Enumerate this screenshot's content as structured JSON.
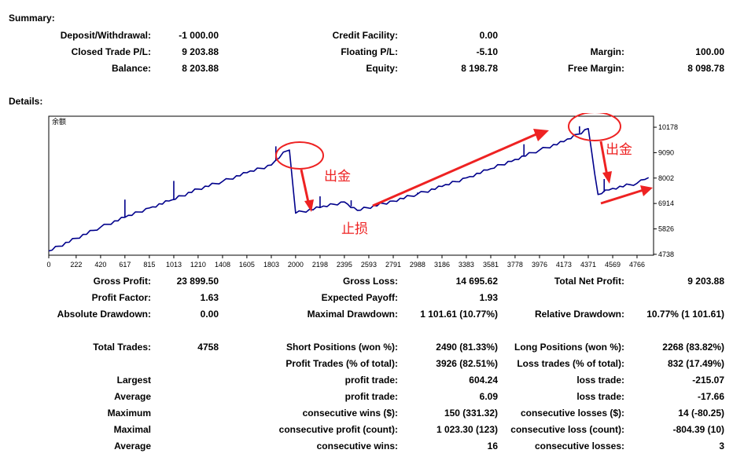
{
  "summary": {
    "heading": "Summary:",
    "rows": [
      [
        {
          "label": "Deposit/Withdrawal:",
          "value": "-1 000.00"
        },
        {
          "label": "Credit Facility:",
          "value": "0.00"
        },
        {
          "label": "",
          "value": ""
        }
      ],
      [
        {
          "label": "Closed Trade P/L:",
          "value": "9 203.88"
        },
        {
          "label": "Floating P/L:",
          "value": "-5.10"
        },
        {
          "label": "Margin:",
          "value": "100.00"
        }
      ],
      [
        {
          "label": "Balance:",
          "value": "8 203.88"
        },
        {
          "label": "Equity:",
          "value": "8 198.78"
        },
        {
          "label": "Free Margin:",
          "value": "8 098.78"
        }
      ]
    ]
  },
  "details": {
    "heading": "Details:"
  },
  "chart_data": {
    "type": "line",
    "title": "余额",
    "x_ticks": [
      "0",
      "222",
      "420",
      "617",
      "815",
      "1013",
      "1210",
      "1408",
      "1605",
      "1803",
      "2000",
      "2198",
      "2395",
      "2593",
      "2791",
      "2988",
      "3186",
      "3383",
      "3581",
      "3778",
      "3976",
      "4173",
      "4371",
      "4569",
      "4766"
    ],
    "y_ticks": [
      "10178",
      "9090",
      "8002",
      "6914",
      "5826",
      "4738"
    ],
    "xlim": [
      0,
      4900
    ],
    "ylim": [
      4700,
      10650
    ],
    "grid": false,
    "legend": "none",
    "series": [
      {
        "x": [
          0,
          220,
          420,
          617,
          815,
          1000,
          1210,
          1408,
          1605,
          1803,
          1900,
          1950,
          2000,
          2198,
          2395,
          2500,
          2791,
          2988,
          3186,
          3383,
          3581,
          3778,
          3976,
          4173,
          4371,
          4450,
          4569,
          4766,
          4860
        ],
        "y": [
          4880,
          5420,
          5900,
          6320,
          6720,
          7070,
          7530,
          7860,
          8230,
          8560,
          9110,
          9200,
          6500,
          6740,
          6980,
          6620,
          7020,
          7320,
          7640,
          8010,
          8400,
          8800,
          9200,
          9560,
          10120,
          7300,
          7560,
          7780,
          8020
        ],
        "spikes": [
          {
            "x": 617,
            "y": 7080
          },
          {
            "x": 1013,
            "y": 7880
          },
          {
            "x": 1840,
            "y": 9360
          },
          {
            "x": 2198,
            "y": 7220
          },
          {
            "x": 2450,
            "y": 7050
          },
          {
            "x": 2988,
            "y": 7380
          },
          {
            "x": 3850,
            "y": 9450
          },
          {
            "x": 4300,
            "y": 10220
          },
          {
            "x": 4500,
            "y": 7960
          }
        ],
        "color": "#00008b"
      }
    ],
    "annotations": {
      "withdraw_label": "出金",
      "stoploss_label": "止损",
      "color": "#ee2222"
    }
  },
  "stats": {
    "block1": [
      [
        {
          "label": "Gross Profit:",
          "value": "23 899.50"
        },
        {
          "label": "Gross Loss:",
          "value": "14 695.62"
        },
        {
          "label": "Total Net Profit:",
          "value": "9 203.88"
        }
      ],
      [
        {
          "label": "Profit Factor:",
          "value": "1.63"
        },
        {
          "label": "Expected Payoff:",
          "value": "1.93"
        },
        {
          "label": "",
          "value": ""
        }
      ],
      [
        {
          "label": "Absolute Drawdown:",
          "value": "0.00"
        },
        {
          "label": "Maximal Drawdown:",
          "value": "1 101.61 (10.77%)"
        },
        {
          "label": "Relative Drawdown:",
          "value": "10.77% (1 101.61)"
        }
      ]
    ],
    "block2": [
      [
        {
          "label": "Total Trades:",
          "value": "4758"
        },
        {
          "label": "Short Positions (won %):",
          "value": "2490 (81.33%)"
        },
        {
          "label": "Long Positions (won %):",
          "value": "2268 (83.82%)"
        }
      ],
      [
        {
          "label": "",
          "value": ""
        },
        {
          "label": "Profit Trades (% of total):",
          "value": "3926 (82.51%)"
        },
        {
          "label": "Loss trades (% of total):",
          "value": "832 (17.49%)"
        }
      ],
      [
        {
          "label": "Largest",
          "value": ""
        },
        {
          "label": "profit trade:",
          "value": "604.24"
        },
        {
          "label": "loss trade:",
          "value": "-215.07"
        }
      ],
      [
        {
          "label": "Average",
          "value": ""
        },
        {
          "label": "profit trade:",
          "value": "6.09"
        },
        {
          "label": "loss trade:",
          "value": "-17.66"
        }
      ],
      [
        {
          "label": "Maximum",
          "value": ""
        },
        {
          "label": "consecutive wins ($):",
          "value": "150 (331.32)"
        },
        {
          "label": "consecutive losses ($):",
          "value": "14 (-80.25)"
        }
      ],
      [
        {
          "label": "Maximal",
          "value": ""
        },
        {
          "label": "consecutive profit (count):",
          "value": "1 023.30 (123)"
        },
        {
          "label": "consecutive loss (count):",
          "value": "-804.39 (10)"
        }
      ],
      [
        {
          "label": "Average",
          "value": ""
        },
        {
          "label": "consecutive wins:",
          "value": "16"
        },
        {
          "label": "consecutive losses:",
          "value": "3"
        }
      ]
    ]
  }
}
